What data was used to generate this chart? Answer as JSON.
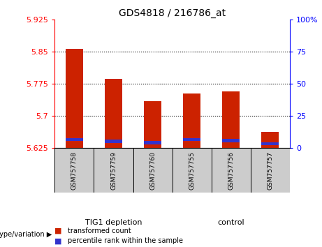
{
  "title": "GDS4818 / 216786_at",
  "samples": [
    "GSM757758",
    "GSM757759",
    "GSM757760",
    "GSM757755",
    "GSM757756",
    "GSM757757"
  ],
  "red_values": [
    5.857,
    5.787,
    5.735,
    5.752,
    5.757,
    5.663
  ],
  "blue_values": [
    5.645,
    5.641,
    5.638,
    5.645,
    5.643,
    5.636
  ],
  "y_min": 5.625,
  "y_max": 5.925,
  "y_ticks": [
    5.625,
    5.7,
    5.775,
    5.85,
    5.925
  ],
  "y_tick_labels": [
    "5.625",
    "5.7",
    "5.775",
    "5.85",
    "5.925"
  ],
  "y2_ticks": [
    0,
    25,
    50,
    75,
    100
  ],
  "y2_tick_labels": [
    "0",
    "25",
    "50",
    "75",
    "100%"
  ],
  "bar_width": 0.45,
  "red_color": "#cc2200",
  "blue_color": "#3333cc",
  "group1_color": "#99ee88",
  "group2_color": "#55dd44",
  "bar_bg_color": "#cccccc",
  "group_label": "genotype/variation",
  "legend_red": "transformed count",
  "legend_blue": "percentile rank within the sample",
  "grid_dotted_at": [
    5.85,
    5.775,
    5.7
  ],
  "blue_bar_height": 0.007
}
